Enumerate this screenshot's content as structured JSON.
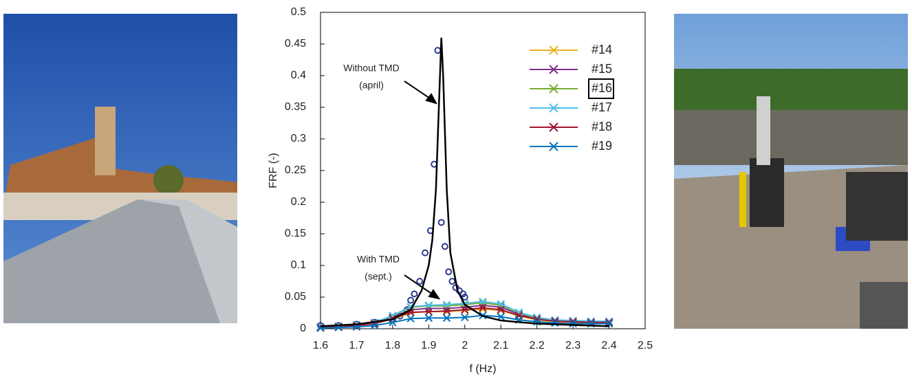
{
  "chart_data": {
    "type": "line",
    "x_label": "f (Hz)",
    "y_label": "FRF (-)",
    "xlim": [
      1.6,
      2.5
    ],
    "xticks": [
      1.6,
      1.7,
      1.8,
      1.9,
      2,
      2.1,
      2.2,
      2.3,
      2.4,
      2.5
    ],
    "ylim": [
      0,
      0.5
    ],
    "yticks": [
      0,
      0.05,
      0.1,
      0.15,
      0.2,
      0.25,
      0.3,
      0.35,
      0.4,
      0.45,
      0.5
    ],
    "annotations": [
      "Without TMD",
      "(april)",
      "With TMD",
      "(sept.)"
    ],
    "without_tmd_line": {
      "color": "#000000",
      "x": [
        1.6,
        1.7,
        1.8,
        1.85,
        1.88,
        1.9,
        1.91,
        1.92,
        1.93,
        1.935,
        1.94,
        1.95,
        1.96,
        1.98,
        2.0,
        2.05,
        2.1,
        2.2,
        2.4
      ],
      "values": [
        0.004,
        0.007,
        0.015,
        0.03,
        0.06,
        0.1,
        0.14,
        0.22,
        0.38,
        0.46,
        0.4,
        0.22,
        0.12,
        0.06,
        0.038,
        0.02,
        0.013,
        0.008,
        0.004
      ]
    },
    "without_tmd_points": {
      "color": "#2b3990",
      "x": [
        1.6,
        1.65,
        1.7,
        1.75,
        1.8,
        1.82,
        1.84,
        1.85,
        1.86,
        1.875,
        1.89,
        1.905,
        1.915,
        1.925,
        1.935,
        1.945,
        1.955,
        1.965,
        1.975,
        1.985,
        1.995,
        2.0
      ],
      "values": [
        0.005,
        0.005,
        0.007,
        0.01,
        0.015,
        0.02,
        0.03,
        0.045,
        0.055,
        0.075,
        0.12,
        0.155,
        0.26,
        0.44,
        0.168,
        0.13,
        0.09,
        0.075,
        0.065,
        0.06,
        0.055,
        0.05
      ]
    },
    "x": [
      1.6,
      1.65,
      1.7,
      1.75,
      1.8,
      1.85,
      1.9,
      1.95,
      2.0,
      2.05,
      2.1,
      2.15,
      2.2,
      2.25,
      2.3,
      2.35,
      2.4
    ],
    "series": [
      {
        "name": "#14",
        "color": "#edb120",
        "values": [
          0.002,
          0.003,
          0.005,
          0.008,
          0.015,
          0.025,
          0.027,
          0.027,
          0.029,
          0.031,
          0.029,
          0.02,
          0.014,
          0.011,
          0.01,
          0.009,
          0.009
        ]
      },
      {
        "name": "#15",
        "color": "#7e2f8e",
        "values": [
          0.003,
          0.004,
          0.006,
          0.009,
          0.018,
          0.03,
          0.032,
          0.032,
          0.034,
          0.037,
          0.034,
          0.023,
          0.016,
          0.012,
          0.011,
          0.01,
          0.01
        ]
      },
      {
        "name": "#16",
        "color": "#77ac30",
        "values": [
          0.003,
          0.004,
          0.006,
          0.01,
          0.02,
          0.034,
          0.036,
          0.036,
          0.038,
          0.041,
          0.037,
          0.025,
          0.017,
          0.013,
          0.012,
          0.011,
          0.011
        ]
      },
      {
        "name": "#17",
        "color": "#4dbeee",
        "values": [
          0.003,
          0.004,
          0.006,
          0.01,
          0.021,
          0.035,
          0.037,
          0.038,
          0.04,
          0.043,
          0.039,
          0.026,
          0.018,
          0.014,
          0.013,
          0.012,
          0.012
        ]
      },
      {
        "name": "#18",
        "color": "#a2142f",
        "values": [
          0.002,
          0.003,
          0.005,
          0.008,
          0.016,
          0.026,
          0.027,
          0.028,
          0.03,
          0.033,
          0.03,
          0.021,
          0.015,
          0.012,
          0.011,
          0.01,
          0.01
        ]
      },
      {
        "name": "#19",
        "color": "#0072bd",
        "values": [
          0.001,
          0.002,
          0.003,
          0.005,
          0.01,
          0.016,
          0.017,
          0.017,
          0.018,
          0.021,
          0.019,
          0.014,
          0.011,
          0.009,
          0.008,
          0.008,
          0.008
        ]
      }
    ]
  }
}
